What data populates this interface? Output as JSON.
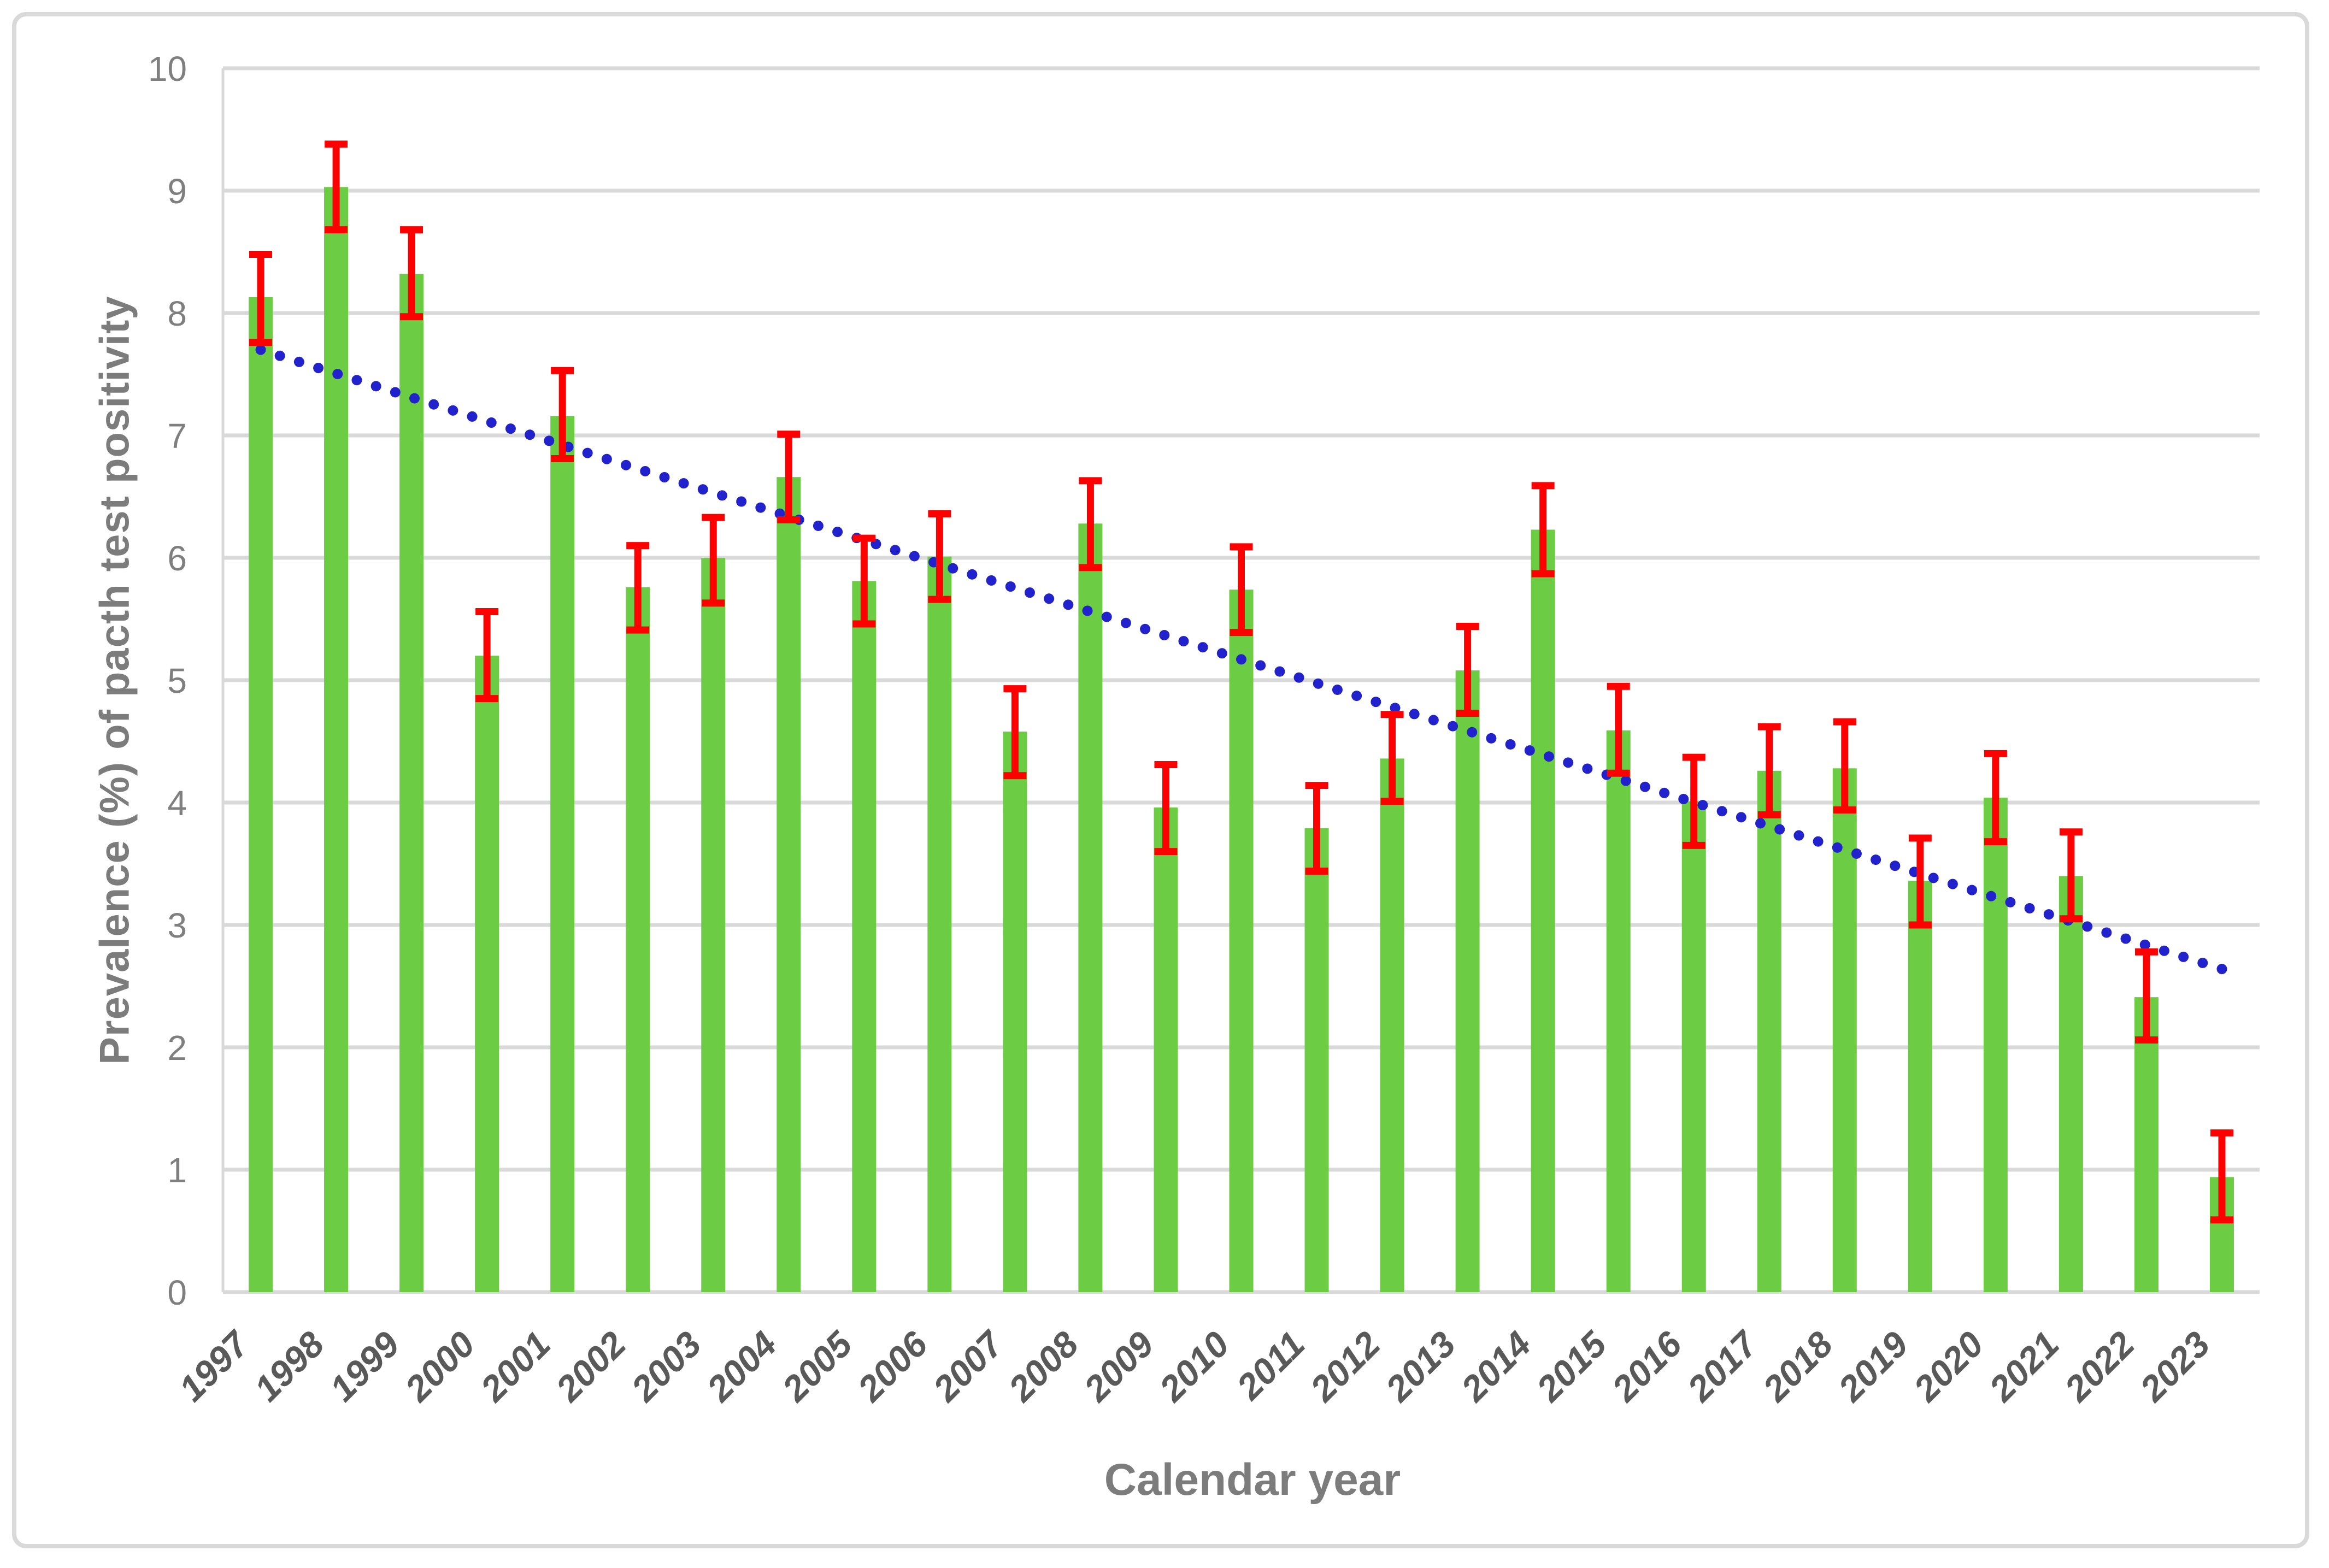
{
  "figure": {
    "background": "#FFFFFF",
    "border_color": "#D9D9D9"
  },
  "chart_data": {
    "type": "bar",
    "title": "",
    "xlabel": "Calendar year",
    "ylabel": "Prevalence (%) of pacth test positivity",
    "categories": [
      "1997",
      "1998",
      "1999",
      "2000",
      "2001",
      "2002",
      "2003",
      "2004",
      "2005",
      "2006",
      "2007",
      "2008",
      "2009",
      "2010",
      "2011",
      "2012",
      "2013",
      "2014",
      "2015",
      "2016",
      "2017",
      "2018",
      "2019",
      "2020",
      "2021",
      "2022",
      "2023"
    ],
    "series": [
      {
        "name": "Prevalence (%) of patch test positivity",
        "values": [
          8.13,
          9.03,
          8.32,
          5.2,
          7.16,
          5.76,
          6.0,
          6.66,
          5.81,
          6.01,
          4.58,
          6.28,
          3.96,
          5.74,
          3.79,
          4.36,
          5.08,
          6.23,
          4.59,
          4.01,
          4.26,
          4.28,
          3.36,
          4.04,
          3.4,
          2.41,
          0.94
        ],
        "error_high": [
          8.48,
          9.38,
          8.68,
          5.56,
          7.53,
          6.1,
          6.33,
          7.01,
          6.16,
          6.36,
          4.93,
          6.63,
          4.31,
          6.09,
          4.14,
          4.72,
          5.44,
          6.59,
          4.95,
          4.37,
          4.62,
          4.66,
          3.71,
          4.4,
          3.76,
          2.78,
          1.3
        ],
        "error_low": [
          7.76,
          8.68,
          7.97,
          4.85,
          6.81,
          5.41,
          5.63,
          6.31,
          5.46,
          5.66,
          4.22,
          5.92,
          3.6,
          5.39,
          3.44,
          4.01,
          4.73,
          5.87,
          4.24,
          3.65,
          3.9,
          3.94,
          3.0,
          3.68,
          3.05,
          2.06,
          0.59
        ],
        "color": "#6CCD44"
      }
    ],
    "error_bar_color": "#FF0000",
    "trendline": {
      "type": "linear",
      "style": "dotted",
      "color": "#2222CC",
      "start": {
        "category": "1997",
        "value": 7.7
      },
      "end": {
        "category": "2023",
        "value": 2.64
      }
    },
    "ylim": [
      0,
      10
    ],
    "y_tick_step": 1,
    "grid": true,
    "legend_position": "none",
    "gridline_color": "#D9D9D9",
    "axis_line_color": "#D9D9D9",
    "y_tick_color": "#7F7F7F",
    "x_tick_color": "#595959"
  }
}
